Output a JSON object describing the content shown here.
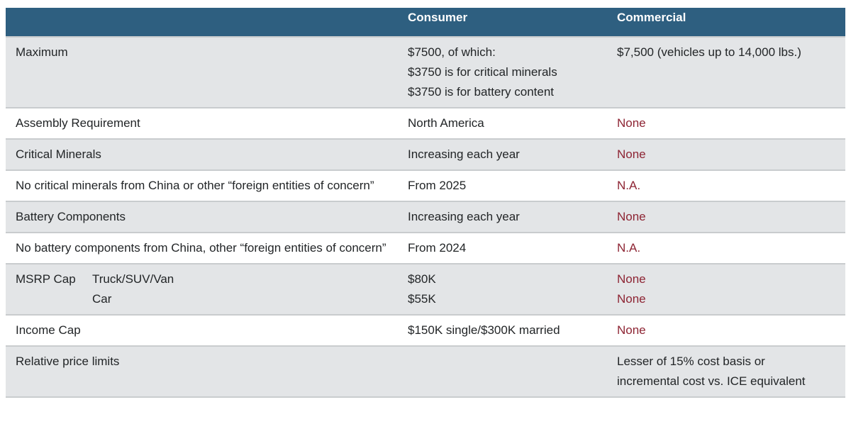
{
  "colors": {
    "header_bg": "#2e5f80",
    "header_text": "#ffffff",
    "stripe_bg": "#e3e5e7",
    "white_bg": "#ffffff",
    "divider": "#c9ccce",
    "text": "#222527",
    "accent_red": "#8d2433"
  },
  "table": {
    "header": {
      "label": "",
      "consumer": "Consumer",
      "commercial": "Commercial"
    },
    "rows": [
      {
        "label": "Maximum",
        "consumer": [
          "$7500, of which:",
          "$3750 is for critical minerals",
          "$3750 is for battery content"
        ],
        "commercial": [
          "$7,500 (vehicles up to 14,000 lbs.)"
        ]
      },
      {
        "label": "Assembly Requirement",
        "consumer": [
          "North America"
        ],
        "commercial": [
          "None"
        ]
      },
      {
        "label": "Critical Minerals",
        "consumer": [
          "Increasing each year"
        ],
        "commercial": [
          "None"
        ]
      },
      {
        "label": "No critical minerals from China or other “foreign entities of concern”",
        "consumer": [
          "From 2025"
        ],
        "commercial": [
          "N.A."
        ]
      },
      {
        "label": "Battery Components",
        "consumer": [
          "Increasing each year"
        ],
        "commercial": [
          "None"
        ]
      },
      {
        "label": "No battery components from China, other “foreign entities of concern”",
        "consumer": [
          "From 2024"
        ],
        "commercial": [
          "N.A."
        ]
      },
      {
        "label": "MSRP Cap",
        "label_sub": [
          "Truck/SUV/Van",
          "Car"
        ],
        "consumer": [
          "$80K",
          "$55K"
        ],
        "commercial": [
          "None",
          "None"
        ]
      },
      {
        "label": "Income Cap",
        "consumer": [
          "$150K single/$300K married"
        ],
        "commercial": [
          "None"
        ]
      },
      {
        "label": "Relative price limits",
        "consumer": [],
        "commercial": [
          "Lesser of 15% cost basis or",
          "incremental cost vs. ICE equivalent"
        ]
      }
    ]
  }
}
